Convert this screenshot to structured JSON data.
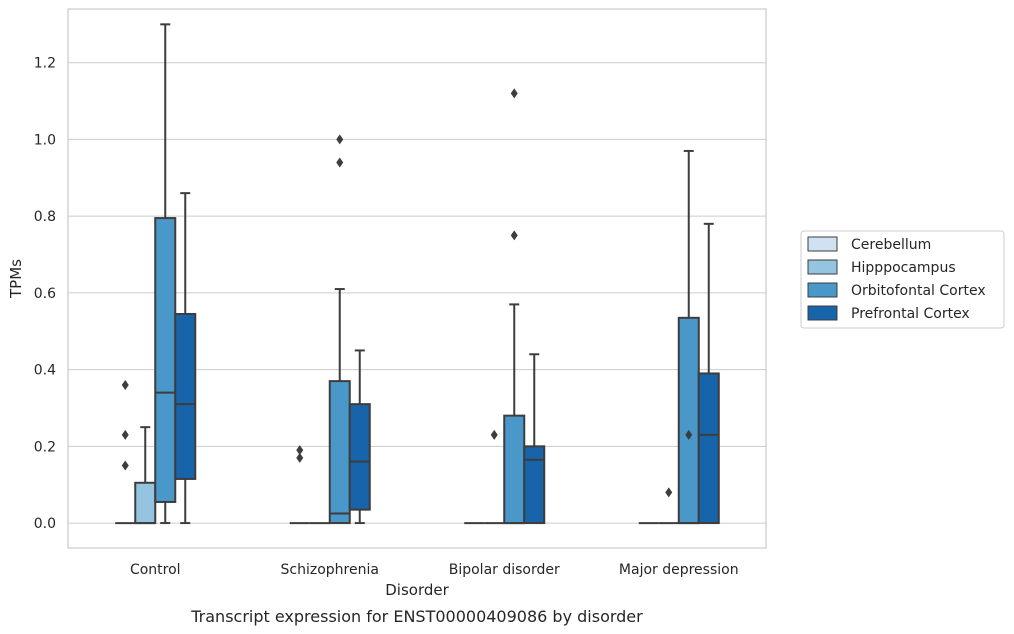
{
  "chart_data": {
    "type": "box",
    "caption": "Transcript expression for ENST00000409086 by disorder",
    "xlabel": "Disorder",
    "ylabel": "TPMs",
    "ylim": [
      -0.065,
      1.34
    ],
    "yticks": [
      0.0,
      0.2,
      0.4,
      0.6,
      0.8,
      1.0,
      1.2
    ],
    "ytick_labels": [
      "0.0",
      "0.2",
      "0.4",
      "0.6",
      "0.8",
      "1.0",
      "1.2"
    ],
    "grid": "horizontal",
    "legend_position": "right",
    "categories": [
      "Control",
      "Schizophrenia",
      "Bipolar disorder",
      "Major depression"
    ],
    "series": [
      {
        "name": "Cerebellum",
        "color": "#d0e1f2",
        "boxes": [
          {
            "q1": 0,
            "median": 0,
            "q3": 0,
            "whisker_low": 0,
            "whisker_high": 0,
            "outliers": [
              0.36,
              0.23,
              0.15
            ]
          },
          {
            "q1": 0,
            "median": 0,
            "q3": 0,
            "whisker_low": 0,
            "whisker_high": 0,
            "outliers": [
              0.19,
              0.17
            ]
          },
          {
            "q1": 0,
            "median": 0,
            "q3": 0,
            "whisker_low": 0,
            "whisker_high": 0,
            "outliers": []
          },
          {
            "q1": 0,
            "median": 0,
            "q3": 0,
            "whisker_low": 0,
            "whisker_high": 0,
            "outliers": []
          }
        ]
      },
      {
        "name": "Hipppocampus",
        "color": "#94c4df",
        "boxes": [
          {
            "q1": 0,
            "median": 0,
            "q3": 0.105,
            "whisker_low": 0,
            "whisker_high": 0.25,
            "outliers": []
          },
          {
            "q1": 0,
            "median": 0,
            "q3": 0,
            "whisker_low": 0,
            "whisker_high": 0,
            "outliers": []
          },
          {
            "q1": 0,
            "median": 0,
            "q3": 0,
            "whisker_low": 0,
            "whisker_high": 0,
            "outliers": [
              0.23
            ]
          },
          {
            "q1": 0,
            "median": 0,
            "q3": 0,
            "whisker_low": 0,
            "whisker_high": 0,
            "outliers": [
              0.08
            ]
          }
        ]
      },
      {
        "name": "Orbitofontal Cortex",
        "color": "#4a98c9",
        "boxes": [
          {
            "q1": 0.055,
            "median": 0.34,
            "q3": 0.795,
            "whisker_low": 0,
            "whisker_high": 1.3,
            "outliers": []
          },
          {
            "q1": 0,
            "median": 0.025,
            "q3": 0.37,
            "whisker_low": 0,
            "whisker_high": 0.61,
            "outliers": [
              1.0,
              0.94
            ]
          },
          {
            "q1": 0,
            "median": 0,
            "q3": 0.28,
            "whisker_low": 0,
            "whisker_high": 0.57,
            "outliers": [
              1.12,
              0.75
            ]
          },
          {
            "q1": 0,
            "median": 0,
            "q3": 0.535,
            "whisker_low": 0,
            "whisker_high": 0.97,
            "outliers": [
              0.23
            ]
          }
        ]
      },
      {
        "name": "Prefrontal Cortex",
        "color": "#1764ab",
        "boxes": [
          {
            "q1": 0.115,
            "median": 0.31,
            "q3": 0.545,
            "whisker_low": 0,
            "whisker_high": 0.86,
            "outliers": []
          },
          {
            "q1": 0.035,
            "median": 0.16,
            "q3": 0.31,
            "whisker_low": 0,
            "whisker_high": 0.45,
            "outliers": []
          },
          {
            "q1": 0,
            "median": 0.165,
            "q3": 0.2,
            "whisker_low": 0,
            "whisker_high": 0.44,
            "outliers": []
          },
          {
            "q1": 0,
            "median": 0.23,
            "q3": 0.39,
            "whisker_low": 0,
            "whisker_high": 0.78,
            "outliers": []
          }
        ]
      }
    ]
  }
}
